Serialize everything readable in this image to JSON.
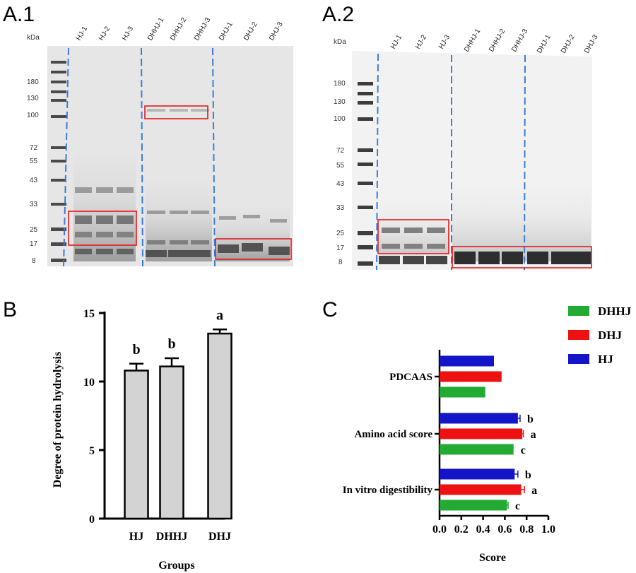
{
  "panels": {
    "a1": "A.1",
    "a2": "A.2",
    "b": "B",
    "c": "C"
  },
  "gel_a1": {
    "unit_label": "kDa",
    "markers": [
      "180",
      "130",
      "100",
      "72",
      "55",
      "43",
      "33",
      "25",
      "17",
      "8"
    ],
    "lanes": [
      "HJ-1",
      "HJ-2",
      "HJ-3",
      "DHHJ-1",
      "DHHJ-2",
      "DHHJ-3",
      "DHJ-1",
      "DHJ-2",
      "DHJ-3"
    ]
  },
  "gel_a2": {
    "unit_label": "kDa",
    "markers": [
      "180",
      "130",
      "100",
      "72",
      "55",
      "43",
      "33",
      "25",
      "17",
      "8"
    ],
    "lanes": [
      "HJ-1",
      "HJ-2",
      "HJ-3",
      "DHHJ-1",
      "DHHJ-2",
      "DHHJ-3",
      "DHJ-1",
      "DHJ-2",
      "DHJ-3"
    ]
  },
  "chart_data": [
    {
      "type": "bar",
      "title": "",
      "xlabel": "Groups",
      "ylabel": "Degree of protein hydrolysis",
      "categories": [
        "HJ",
        "DHHJ",
        "DHJ"
      ],
      "values": [
        10.8,
        11.1,
        13.5
      ],
      "errors": [
        0.5,
        0.6,
        0.3
      ],
      "significance": [
        "b",
        "b",
        "a"
      ],
      "yticks": [
        "0",
        "5",
        "10",
        "15"
      ],
      "ylim": [
        0,
        15
      ],
      "bar_color": "#d3d3d3"
    },
    {
      "type": "bar",
      "orientation": "horizontal",
      "xlabel": "Score",
      "ylabel": "",
      "categories": [
        "PDCAAS",
        "Amino acid score",
        "In vitro digestibility"
      ],
      "series": [
        {
          "name": "HJ",
          "color": "#1414c8",
          "values": [
            0.5,
            0.72,
            0.69
          ],
          "errors": [
            0,
            0.02,
            0.03
          ],
          "significance": [
            "",
            "b",
            "b"
          ]
        },
        {
          "name": "DHJ",
          "color": "#ee1111",
          "values": [
            0.57,
            0.76,
            0.75
          ],
          "errors": [
            0,
            0.01,
            0.03
          ],
          "significance": [
            "",
            "a",
            "a"
          ]
        },
        {
          "name": "DHHJ",
          "color": "#22aa33",
          "values": [
            0.42,
            0.68,
            0.62
          ],
          "errors": [
            0,
            0,
            0.01
          ],
          "significance": [
            "",
            "c",
            "c"
          ]
        }
      ],
      "legend": [
        "DHHJ",
        "DHJ",
        "HJ"
      ],
      "xticks": [
        "0.0",
        "0.2",
        "0.4",
        "0.6",
        "0.8",
        "1.0"
      ],
      "xlim": [
        0,
        1.0
      ]
    }
  ]
}
